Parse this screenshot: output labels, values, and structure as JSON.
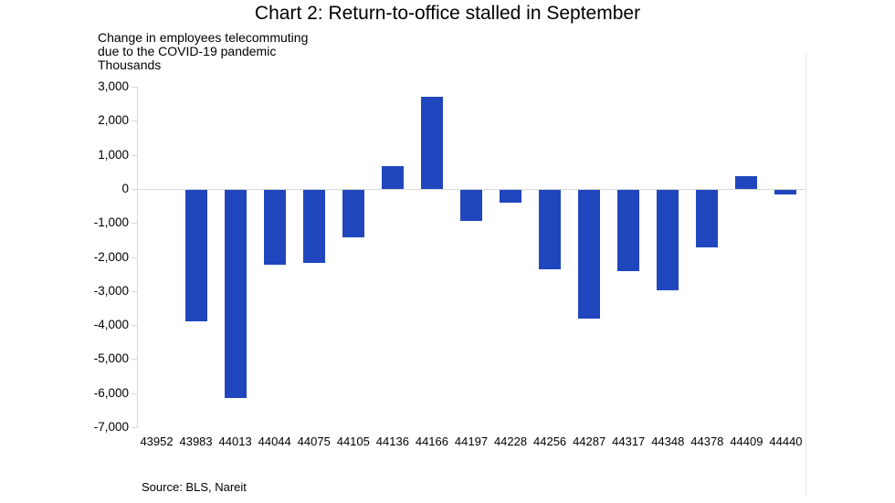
{
  "title": "Chart 2: Return-to-office stalled in September",
  "subtitle_lines": [
    "Change in employees telecommuting",
    "due to the COVID-19 pandemic",
    "Thousands"
  ],
  "source": "Source: BLS, Nareit",
  "colors": {
    "bar": "#2046be",
    "axis_line": "#d9d9d9",
    "text": "#000000"
  },
  "chart_data": {
    "type": "bar",
    "title": "Chart 2: Return-to-office stalled in September",
    "subtitle": "Change in employees telecommuting due to the COVID-19 pandemic",
    "units_label": "Thousands",
    "categories": [
      "43952",
      "43983",
      "44013",
      "44044",
      "44075",
      "44105",
      "44136",
      "44166",
      "44197",
      "44228",
      "44256",
      "44287",
      "44317",
      "44348",
      "44378",
      "44409",
      "44440"
    ],
    "values": [
      0,
      -3850,
      -6100,
      -2200,
      -2150,
      -1400,
      670,
      2700,
      -900,
      -380,
      -2320,
      -3780,
      -2380,
      -2950,
      -1700,
      380,
      -130
    ],
    "xlabel": "",
    "ylabel": "Thousands",
    "ylim": [
      -7000,
      3000
    ],
    "ytick_step": 1000,
    "ytick_labels": [
      "3,000",
      "2,000",
      "1,000",
      "0",
      "-1,000",
      "-2,000",
      "-3,000",
      "-4,000",
      "-5,000",
      "-6,000",
      "-7,000"
    ],
    "grid": false,
    "legend": false,
    "source": "Source: BLS, Nareit"
  }
}
